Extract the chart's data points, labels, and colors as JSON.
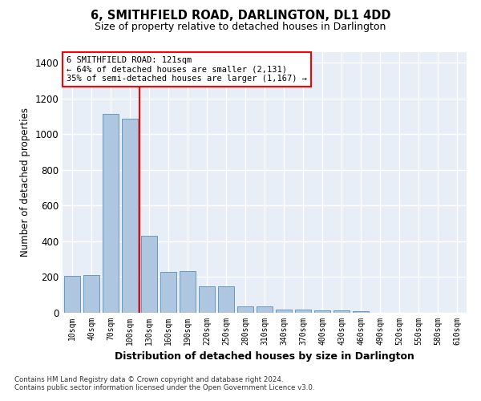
{
  "title": "6, SMITHFIELD ROAD, DARLINGTON, DL1 4DD",
  "subtitle": "Size of property relative to detached houses in Darlington",
  "xlabel": "Distribution of detached houses by size in Darlington",
  "ylabel": "Number of detached properties",
  "bar_color": "#aec6e0",
  "bar_edge_color": "#6699bb",
  "background_color": "#e8eef8",
  "grid_color": "#ffffff",
  "categories": [
    "10sqm",
    "40sqm",
    "70sqm",
    "100sqm",
    "130sqm",
    "160sqm",
    "190sqm",
    "220sqm",
    "250sqm",
    "280sqm",
    "310sqm",
    "340sqm",
    "370sqm",
    "400sqm",
    "430sqm",
    "460sqm",
    "490sqm",
    "520sqm",
    "550sqm",
    "580sqm",
    "610sqm"
  ],
  "values": [
    207,
    210,
    1115,
    1085,
    430,
    230,
    235,
    148,
    148,
    38,
    38,
    20,
    20,
    15,
    15,
    10,
    0,
    0,
    0,
    0,
    0
  ],
  "red_line_x": 3.5,
  "annotation_text": "6 SMITHFIELD ROAD: 121sqm\n← 64% of detached houses are smaller (2,131)\n35% of semi-detached houses are larger (1,167) →",
  "ylim": [
    0,
    1460
  ],
  "yticks": [
    0,
    200,
    400,
    600,
    800,
    1000,
    1200,
    1400
  ],
  "footer_line1": "Contains HM Land Registry data © Crown copyright and database right 2024.",
  "footer_line2": "Contains public sector information licensed under the Open Government Licence v3.0."
}
